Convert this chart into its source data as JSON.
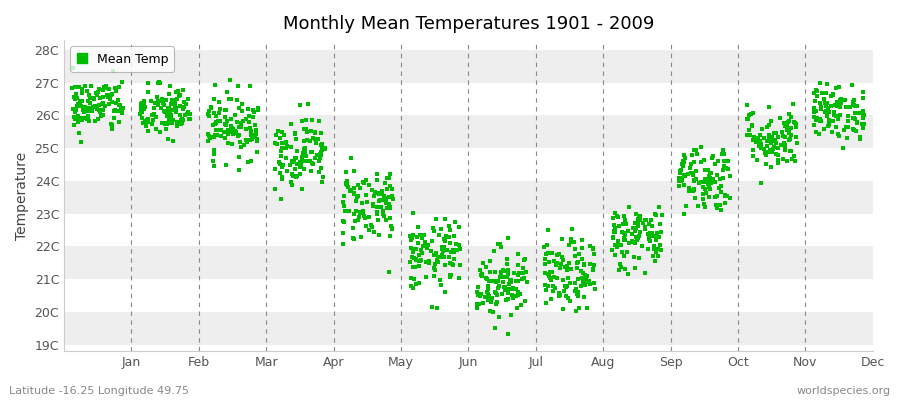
{
  "title": "Monthly Mean Temperatures 1901 - 2009",
  "ylabel": "Temperature",
  "ylim": [
    18.8,
    28.3
  ],
  "yticks": [
    19,
    20,
    21,
    22,
    23,
    24,
    25,
    26,
    27,
    28
  ],
  "ytick_labels": [
    "19C",
    "20C",
    "21C",
    "22C",
    "23C",
    "24C",
    "25C",
    "26C",
    "27C",
    "28C"
  ],
  "month_labels": [
    "Jan",
    "Feb",
    "Mar",
    "Apr",
    "May",
    "Jun",
    "Jul",
    "Aug",
    "Sep",
    "Oct",
    "Nov",
    "Dec"
  ],
  "legend_label": "Mean Temp",
  "marker_color": "#00bb00",
  "marker": "s",
  "marker_size": 2.5,
  "background_color": "#ffffff",
  "plot_bg_color": "#ffffff",
  "subtitle_left": "Latitude -16.25 Longitude 49.75",
  "subtitle_right": "worldspecies.org",
  "monthly_mean": [
    26.3,
    26.1,
    25.7,
    24.9,
    23.3,
    21.7,
    20.9,
    21.1,
    22.3,
    24.1,
    25.3,
    26.1
  ],
  "monthly_std": [
    0.42,
    0.42,
    0.5,
    0.55,
    0.6,
    0.55,
    0.55,
    0.55,
    0.5,
    0.52,
    0.48,
    0.42
  ],
  "num_years": 109,
  "seed": 42
}
